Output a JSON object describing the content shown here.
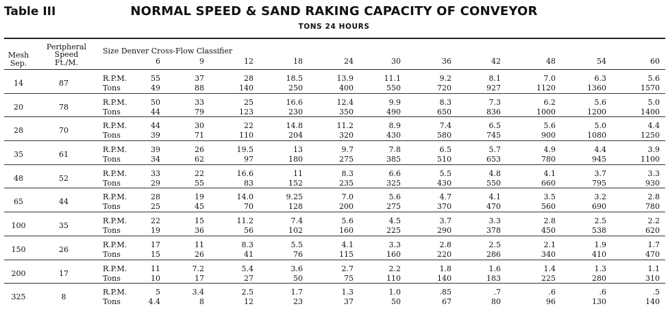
{
  "table_label": "Table III",
  "title": "NORMAL SPEED & SAND RAKING CAPACITY OF CONVEYOR",
  "subtitle": "TONS 24 HOURS",
  "headers": {
    "mesh": "Mesh",
    "sep": "Sep.",
    "peripheral": "Peripheral",
    "speed": "Speed",
    "ftm": "Ft./M.",
    "classifier": "Size Denver Cross-Flow Classifier"
  },
  "labels": {
    "rpm": "R.P.M.",
    "tons": "Tons"
  },
  "sizes": [
    "6",
    "9",
    "12",
    "18",
    "24",
    "30",
    "36",
    "42",
    "48",
    "54",
    "60"
  ],
  "rows": [
    {
      "mesh": "14",
      "speed": "87",
      "rpm": [
        "55",
        "37",
        "28",
        "18.5",
        "13.9",
        "11.1",
        "9.2",
        "8.1",
        "7.0",
        "6.3",
        "5.6"
      ],
      "tons": [
        "49",
        "88",
        "140",
        "250",
        "400",
        "550",
        "720",
        "927",
        "1120",
        "1360",
        "1570"
      ]
    },
    {
      "mesh": "20",
      "speed": "78",
      "rpm": [
        "50",
        "33",
        "25",
        "16.6",
        "12.4",
        "9.9",
        "8.3",
        "7.3",
        "6.2",
        "5.6",
        "5.0"
      ],
      "tons": [
        "44",
        "79",
        "123",
        "230",
        "350",
        "490",
        "650",
        "836",
        "1000",
        "1200",
        "1400"
      ]
    },
    {
      "mesh": "28",
      "speed": "70",
      "rpm": [
        "44",
        "30",
        "22",
        "14.8",
        "11.2",
        "8.9",
        "7.4",
        "6.5",
        "5.6",
        "5.0",
        "4.4"
      ],
      "tons": [
        "39",
        "71",
        "110",
        "204",
        "320",
        "430",
        "580",
        "745",
        "900",
        "1080",
        "1250"
      ]
    },
    {
      "mesh": "35",
      "speed": "61",
      "rpm": [
        "39",
        "26",
        "19.5",
        "13",
        "9.7",
        "7.8",
        "6.5",
        "5.7",
        "4.9",
        "4.4",
        "3.9"
      ],
      "tons": [
        "34",
        "62",
        "97",
        "180",
        "275",
        "385",
        "510",
        "653",
        "780",
        "945",
        "1100"
      ]
    },
    {
      "mesh": "48",
      "speed": "52",
      "rpm": [
        "33",
        "22",
        "16.6",
        "11",
        "8.3",
        "6.6",
        "5.5",
        "4.8",
        "4.1",
        "3.7",
        "3.3"
      ],
      "tons": [
        "29",
        "55",
        "83",
        "152",
        "235",
        "325",
        "430",
        "550",
        "660",
        "795",
        "930"
      ]
    },
    {
      "mesh": "65",
      "speed": "44",
      "rpm": [
        "28",
        "19",
        "14.0",
        "9.25",
        "7.0",
        "5.6",
        "4.7",
        "4.1",
        "3.5",
        "3.2",
        "2.8"
      ],
      "tons": [
        "25",
        "45",
        "70",
        "128",
        "200",
        "275",
        "370",
        "470",
        "560",
        "690",
        "780"
      ]
    },
    {
      "mesh": "100",
      "speed": "35",
      "rpm": [
        "22",
        "15",
        "11.2",
        "7.4",
        "5.6",
        "4.5",
        "3.7",
        "3.3",
        "2.8",
        "2.5",
        "2.2"
      ],
      "tons": [
        "19",
        "36",
        "56",
        "102",
        "160",
        "225",
        "290",
        "378",
        "450",
        "538",
        "620"
      ]
    },
    {
      "mesh": "150",
      "speed": "26",
      "rpm": [
        "17",
        "11",
        "8.3",
        "5.5",
        "4.1",
        "3.3",
        "2.8",
        "2.5",
        "2.1",
        "1.9",
        "1.7"
      ],
      "tons": [
        "15",
        "26",
        "41",
        "76",
        "115",
        "160",
        "220",
        "286",
        "340",
        "410",
        "470"
      ]
    },
    {
      "mesh": "200",
      "speed": "17",
      "rpm": [
        "11",
        "7.2",
        "5.4",
        "3.6",
        "2.7",
        "2.2",
        "1.8",
        "1.6",
        "1.4",
        "1.3",
        "1.1"
      ],
      "tons": [
        "10",
        "17",
        "27",
        "50",
        "75",
        "110",
        "140",
        "183",
        "225",
        "280",
        "310"
      ]
    },
    {
      "mesh": "325",
      "speed": "8",
      "rpm": [
        "5",
        "3.4",
        "2.5",
        "1.7",
        "1.3",
        "1.0",
        ".85",
        ".7",
        ".6",
        ".6",
        ".5"
      ],
      "tons": [
        "4.4",
        "8",
        "12",
        "23",
        "37",
        "50",
        "67",
        "80",
        "96",
        "130",
        "140"
      ]
    }
  ]
}
